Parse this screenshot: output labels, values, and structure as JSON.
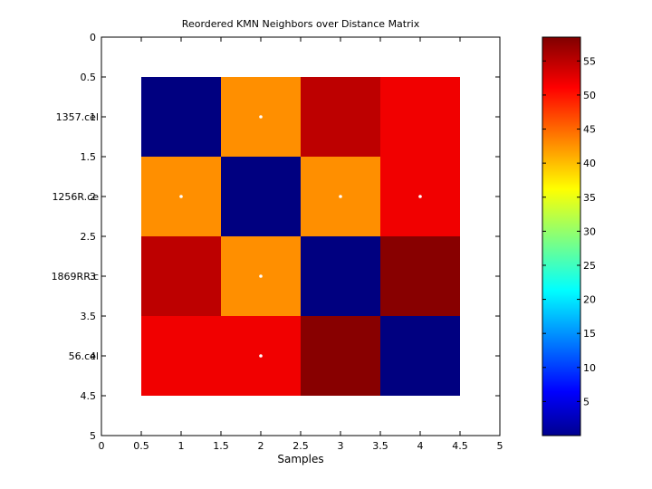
{
  "chart_data": {
    "type": "heatmap",
    "title": "Reordered KMN Neighbors over Distance Matrix",
    "xlabel": "Samples",
    "ylabel": "",
    "xlim": [
      0,
      5
    ],
    "ylim": [
      0,
      5
    ],
    "xticks": [
      "0",
      "0.5",
      "1",
      "1.5",
      "2",
      "2.5",
      "3",
      "3.5",
      "4",
      "4.5",
      "5"
    ],
    "yticks": [
      "0",
      "0.5",
      "1",
      "1.5",
      "2",
      "2.5",
      "3",
      "3.5",
      "4",
      "4.5",
      "5"
    ],
    "row_labels": [
      "1357.cel",
      "1256R.ce",
      "1869RR.c",
      "56.cel"
    ],
    "matrix": [
      [
        0,
        43,
        55,
        52
      ],
      [
        43,
        0,
        43,
        52
      ],
      [
        55,
        43,
        0,
        58
      ],
      [
        52,
        52,
        58,
        0
      ]
    ],
    "neighbor_markers": [
      [
        0,
        1
      ],
      [
        1,
        0
      ],
      [
        1,
        2
      ],
      [
        1,
        3
      ],
      [
        2,
        1
      ],
      [
        3,
        1
      ]
    ],
    "colormap": "jet",
    "colorbar": {
      "min": 0,
      "max": 58.5,
      "ticks": [
        "5",
        "10",
        "15",
        "20",
        "25",
        "30",
        "35",
        "40",
        "45",
        "50",
        "55"
      ],
      "tick_values": [
        5,
        10,
        15,
        20,
        25,
        30,
        35,
        40,
        45,
        50,
        55
      ]
    },
    "grid": false,
    "legend": "colorbar-right"
  }
}
